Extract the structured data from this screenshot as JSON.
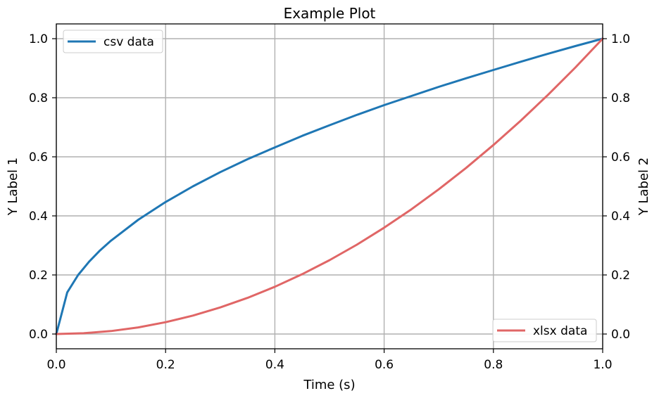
{
  "chart_data": {
    "type": "line",
    "title": "Example Plot",
    "xlabel": "Time (s)",
    "ylabel": "Y Label 1",
    "ylabel_right": "Y Label 2",
    "xlim": [
      0.0,
      1.0
    ],
    "ylim": [
      -0.05,
      1.05
    ],
    "ylim_right": [
      -0.05,
      1.05
    ],
    "grid": true,
    "x_ticks": [
      "0.0",
      "0.2",
      "0.4",
      "0.6",
      "0.8",
      "1.0"
    ],
    "y_ticks": [
      "0.0",
      "0.2",
      "0.4",
      "0.6",
      "0.8",
      "1.0"
    ],
    "y_ticks_right": [
      "0.0",
      "0.2",
      "0.4",
      "0.6",
      "0.8",
      "1.0"
    ],
    "series": [
      {
        "name": "csv data",
        "axis": "left",
        "color": "#1f77b4",
        "legend": "top-left",
        "x": [
          0.0,
          0.02,
          0.04,
          0.06,
          0.08,
          0.1,
          0.15,
          0.2,
          0.25,
          0.3,
          0.35,
          0.4,
          0.45,
          0.5,
          0.55,
          0.6,
          0.65,
          0.7,
          0.75,
          0.8,
          0.85,
          0.9,
          0.95,
          1.0
        ],
        "y": [
          0.0,
          0.141,
          0.2,
          0.245,
          0.283,
          0.316,
          0.387,
          0.447,
          0.5,
          0.548,
          0.592,
          0.632,
          0.671,
          0.707,
          0.742,
          0.775,
          0.806,
          0.837,
          0.866,
          0.894,
          0.922,
          0.949,
          0.975,
          1.0
        ]
      },
      {
        "name": "xlsx data",
        "axis": "right",
        "color": "#e06666",
        "legend": "bottom-right",
        "x": [
          0.0,
          0.05,
          0.1,
          0.15,
          0.2,
          0.25,
          0.3,
          0.35,
          0.4,
          0.45,
          0.5,
          0.55,
          0.6,
          0.65,
          0.7,
          0.75,
          0.8,
          0.85,
          0.9,
          0.95,
          1.0
        ],
        "y": [
          0.0,
          0.0025,
          0.01,
          0.0225,
          0.04,
          0.0625,
          0.09,
          0.1225,
          0.16,
          0.2025,
          0.25,
          0.3025,
          0.36,
          0.4225,
          0.49,
          0.5625,
          0.64,
          0.7225,
          0.81,
          0.9025,
          1.0
        ]
      }
    ]
  }
}
